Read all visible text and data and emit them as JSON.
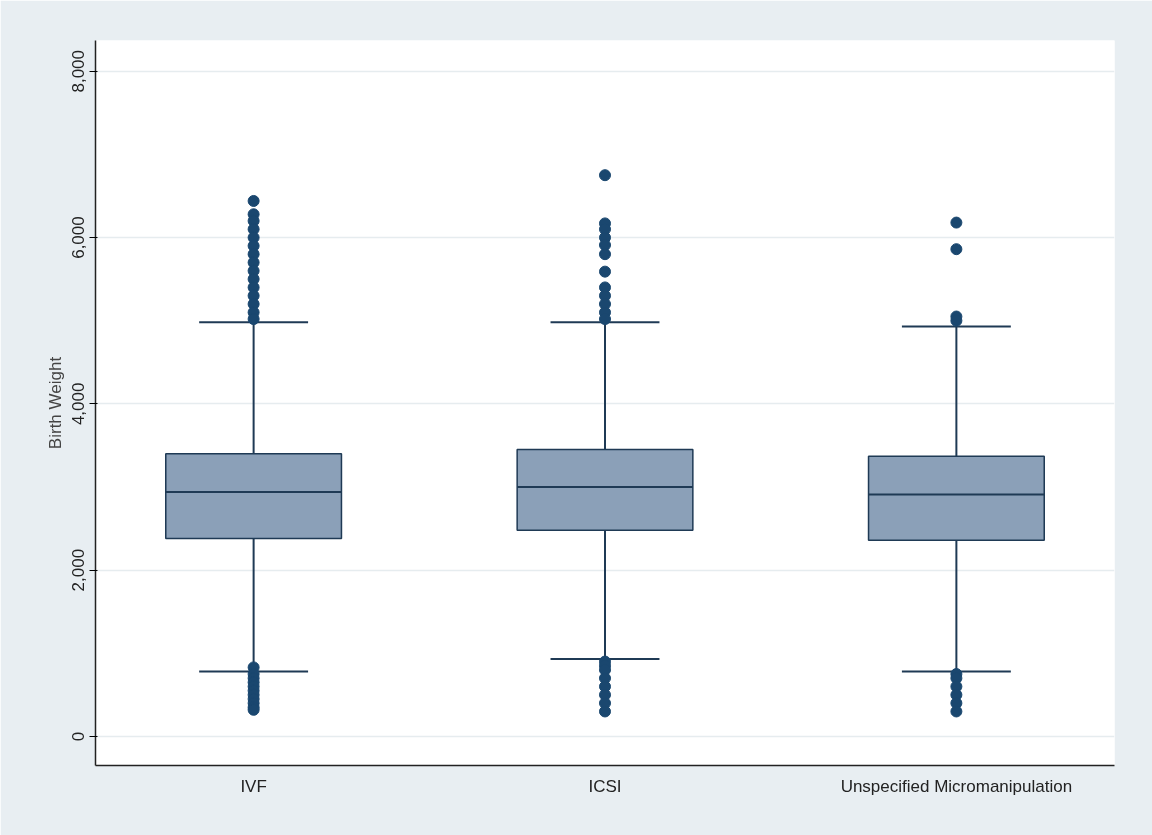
{
  "chart_data": {
    "type": "box",
    "ylabel": "Birth Weight",
    "categories": [
      "IVF",
      "ICSI",
      "Unspecified Micromanipulation"
    ],
    "boxes": [
      {
        "low": 780,
        "q1": 2380,
        "median": 2940,
        "q3": 3400,
        "high": 4980,
        "outliers": [
          6440,
          6280,
          6200,
          6100,
          6000,
          5900,
          5800,
          5700,
          5600,
          5500,
          5400,
          5300,
          5200,
          5100,
          5020,
          830,
          750,
          700,
          650,
          600,
          550,
          500,
          450,
          400,
          350,
          320
        ]
      },
      {
        "low": 930,
        "q1": 2480,
        "median": 3000,
        "q3": 3450,
        "high": 4980,
        "outliers": [
          6750,
          6170,
          6100,
          6000,
          5910,
          5800,
          5590,
          5400,
          5300,
          5200,
          5100,
          5020,
          900,
          850,
          800,
          700,
          600,
          500,
          400,
          300
        ]
      },
      {
        "low": 780,
        "q1": 2360,
        "median": 2910,
        "q3": 3370,
        "high": 4930,
        "outliers": [
          6180,
          5860,
          5050,
          5000,
          750,
          700,
          600,
          500,
          400,
          300
        ]
      }
    ],
    "color": "#8ba0b8",
    "marker": "circle",
    "ylim": [
      -350,
      8370
    ],
    "yticks": [
      {
        "value": 0,
        "label": "0"
      },
      {
        "value": 2000,
        "label": "2,000"
      },
      {
        "value": 4000,
        "label": "4,000"
      },
      {
        "value": 6000,
        "label": "6,000"
      },
      {
        "value": 8000,
        "label": "8,000"
      }
    ],
    "grid": "y"
  }
}
